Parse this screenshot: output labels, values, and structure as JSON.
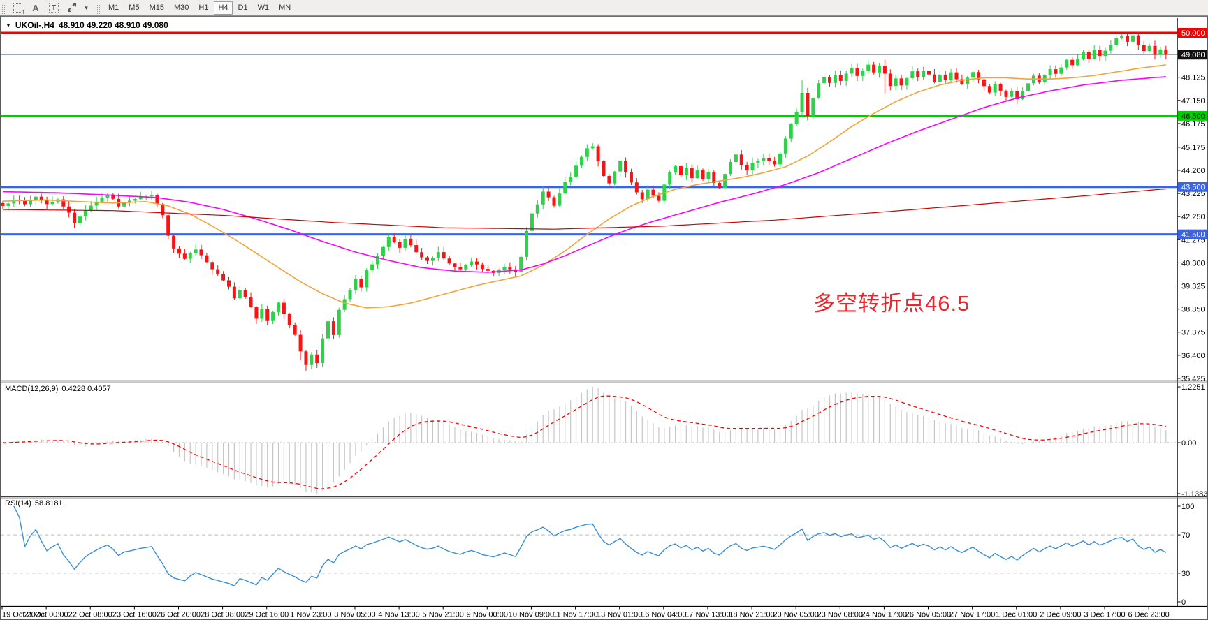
{
  "toolbar": {
    "icons": [
      {
        "name": "dashed-frame-icon",
        "glyph": "f"
      },
      {
        "name": "letter-a-icon",
        "glyph": "A"
      },
      {
        "name": "text-tool-icon",
        "glyph": "T"
      },
      {
        "name": "diagonal-arrows-icon",
        "glyph": ""
      },
      {
        "name": "dropdown-caret-icon",
        "glyph": "▾"
      }
    ],
    "timeframes": [
      "M1",
      "M5",
      "M15",
      "M30",
      "H1",
      "H4",
      "D1",
      "W1",
      "MN"
    ],
    "active_timeframe": "H4"
  },
  "header": {
    "collapse_icon": "▼",
    "symbol": "UKOil-,H4",
    "quotes": "48.910 49.220 48.910 49.080"
  },
  "annotation": {
    "text": "多空转折点46.5",
    "color": "#e8262d"
  },
  "colors": {
    "bull": "#2ed149",
    "bear": "#f81414",
    "level_red": "#f40000",
    "level_green": "#00cd00",
    "level_blue": "#3b63e6",
    "current_price_line": "#7b8a99",
    "ma_fast": "#f0a43c",
    "ma_mid": "#ff00ff",
    "ma_slow": "#d40000",
    "macd_histogram": "#c6c6c6",
    "macd_signal": "#ff0000",
    "rsi_line": "#3a8fd3",
    "axis_text": "#000000",
    "panel_border": "#4a4a4a",
    "dashed_level": "#bdbdbd"
  },
  "price_axis": {
    "tick_labels": [
      "48.125",
      "47.150",
      "46.175",
      "45.175",
      "44.200",
      "43.225",
      "42.250",
      "41.275",
      "40.300",
      "39.325",
      "38.350",
      "37.375",
      "36.400",
      "35.425"
    ],
    "tick_values": [
      48.125,
      47.15,
      46.175,
      45.175,
      44.2,
      43.225,
      42.25,
      41.275,
      40.3,
      39.325,
      38.35,
      37.375,
      36.4,
      35.425
    ],
    "badges": [
      {
        "label": "50.000",
        "price": 50.0,
        "bg": "#f40000",
        "fg": "#ffffff"
      },
      {
        "label": "49.080",
        "price": 49.08,
        "bg": "#101010",
        "fg": "#ffffff"
      },
      {
        "label": "46.500",
        "price": 46.5,
        "bg": "#00cd00",
        "fg": "#000000"
      },
      {
        "label": "43.500",
        "price": 43.5,
        "bg": "#3b63e6",
        "fg": "#ffffff"
      },
      {
        "label": "41.500",
        "price": 41.5,
        "bg": "#3b63e6",
        "fg": "#ffffff"
      }
    ]
  },
  "levels": [
    {
      "name": "resistance-50.000",
      "price": 50.0,
      "color_key": "level_red",
      "width": 3
    },
    {
      "name": "pivot-46.500",
      "price": 46.5,
      "color_key": "level_green",
      "width": 3
    },
    {
      "name": "support-43.500",
      "price": 43.5,
      "color_key": "level_blue",
      "width": 3
    },
    {
      "name": "support-41.500",
      "price": 41.5,
      "color_key": "level_blue",
      "width": 3
    },
    {
      "name": "current-price-49.080",
      "price": 49.08,
      "color_key": "current_price_line",
      "width": 1
    }
  ],
  "time_axis": {
    "labels": [
      "19 Oct 2020",
      "21 Oct 00:00",
      "22 Oct 08:00",
      "23 Oct 16:00",
      "26 Oct 20:00",
      "28 Oct 08:00",
      "29 Oct 16:00",
      "1 Nov 23:00",
      "3 Nov 05:00",
      "4 Nov 13:00",
      "5 Nov 21:00",
      "9 Nov 00:00",
      "10 Nov 09:00",
      "11 Nov 17:00",
      "13 Nov 01:00",
      "16 Nov 04:00",
      "17 Nov 13:00",
      "18 Nov 21:00",
      "20 Nov 05:00",
      "23 Nov 08:00",
      "24 Nov 17:00",
      "26 Nov 05:00",
      "27 Nov 17:00",
      "1 Dec 01:00",
      "2 Dec 09:00",
      "3 Dec 17:00",
      "6 Dec 23:00"
    ]
  },
  "chart_data": {
    "type": "candlestick",
    "symbol": "UKOil",
    "timeframe": "H4",
    "bars": 212,
    "seed": 7,
    "current_bar": {
      "open": 48.91,
      "high": 49.22,
      "low": 48.91,
      "close": 49.08
    },
    "price_range_shown": [
      35.425,
      50.3
    ],
    "close_waypoints": [
      [
        0,
        42.7
      ],
      [
        2,
        43.0
      ],
      [
        4,
        42.75
      ],
      [
        6,
        43.1
      ],
      [
        8,
        42.8
      ],
      [
        10,
        42.95
      ],
      [
        12,
        42.45
      ],
      [
        13,
        41.95
      ],
      [
        15,
        42.55
      ],
      [
        17,
        42.9
      ],
      [
        19,
        43.2
      ],
      [
        21,
        42.7
      ],
      [
        23,
        42.95
      ],
      [
        25,
        43.1
      ],
      [
        27,
        43.15
      ],
      [
        28,
        42.75
      ],
      [
        29,
        42.35
      ],
      [
        30,
        41.4
      ],
      [
        31,
        40.9
      ],
      [
        33,
        40.45
      ],
      [
        35,
        40.85
      ],
      [
        37,
        40.3
      ],
      [
        39,
        39.85
      ],
      [
        41,
        39.3
      ],
      [
        42,
        38.85
      ],
      [
        43,
        39.2
      ],
      [
        45,
        38.45
      ],
      [
        46,
        37.95
      ],
      [
        47,
        38.35
      ],
      [
        48,
        37.8
      ],
      [
        50,
        38.6
      ],
      [
        51,
        38.15
      ],
      [
        52,
        37.7
      ],
      [
        53,
        37.3
      ],
      [
        54,
        36.6
      ],
      [
        55,
        35.95
      ],
      [
        56,
        36.45
      ],
      [
        57,
        36.1
      ],
      [
        58,
        37.1
      ],
      [
        59,
        37.85
      ],
      [
        60,
        37.3
      ],
      [
        61,
        38.3
      ],
      [
        63,
        39.15
      ],
      [
        64,
        39.6
      ],
      [
        65,
        39.25
      ],
      [
        66,
        39.95
      ],
      [
        68,
        40.6
      ],
      [
        69,
        40.95
      ],
      [
        70,
        41.35
      ],
      [
        72,
        40.9
      ],
      [
        73,
        41.3
      ],
      [
        75,
        40.7
      ],
      [
        77,
        40.35
      ],
      [
        79,
        40.75
      ],
      [
        81,
        40.25
      ],
      [
        83,
        40.0
      ],
      [
        85,
        40.35
      ],
      [
        87,
        40.05
      ],
      [
        89,
        39.85
      ],
      [
        91,
        40.15
      ],
      [
        93,
        39.95
      ],
      [
        94,
        40.6
      ],
      [
        95,
        41.6
      ],
      [
        96,
        42.35
      ],
      [
        97,
        42.75
      ],
      [
        98,
        43.35
      ],
      [
        99,
        43.05
      ],
      [
        100,
        42.7
      ],
      [
        101,
        43.2
      ],
      [
        102,
        43.65
      ],
      [
        103,
        43.95
      ],
      [
        104,
        44.35
      ],
      [
        105,
        44.75
      ],
      [
        106,
        45.1
      ],
      [
        107,
        45.2
      ],
      [
        108,
        44.55
      ],
      [
        109,
        44.0
      ],
      [
        110,
        43.6
      ],
      [
        111,
        44.15
      ],
      [
        112,
        44.6
      ],
      [
        113,
        44.15
      ],
      [
        114,
        43.7
      ],
      [
        115,
        43.3
      ],
      [
        116,
        42.95
      ],
      [
        117,
        43.35
      ],
      [
        118,
        43.1
      ],
      [
        119,
        42.9
      ],
      [
        120,
        43.55
      ],
      [
        121,
        44.1
      ],
      [
        122,
        44.35
      ],
      [
        123,
        43.95
      ],
      [
        124,
        44.3
      ],
      [
        125,
        43.9
      ],
      [
        126,
        44.2
      ],
      [
        127,
        43.8
      ],
      [
        128,
        44.1
      ],
      [
        129,
        43.7
      ],
      [
        130,
        43.45
      ],
      [
        131,
        44.05
      ],
      [
        132,
        44.55
      ],
      [
        133,
        44.9
      ],
      [
        134,
        44.45
      ],
      [
        135,
        44.2
      ],
      [
        136,
        44.5
      ],
      [
        138,
        44.75
      ],
      [
        140,
        44.5
      ],
      [
        141,
        44.95
      ],
      [
        142,
        45.5
      ],
      [
        143,
        46.1
      ],
      [
        144,
        46.7
      ],
      [
        145,
        47.5
      ],
      [
        146,
        46.5
      ],
      [
        147,
        47.25
      ],
      [
        148,
        47.85
      ],
      [
        149,
        48.15
      ],
      [
        150,
        47.9
      ],
      [
        151,
        48.2
      ],
      [
        152,
        47.95
      ],
      [
        153,
        48.25
      ],
      [
        154,
        48.5
      ],
      [
        155,
        48.15
      ],
      [
        156,
        48.4
      ],
      [
        157,
        48.65
      ],
      [
        158,
        48.35
      ],
      [
        159,
        48.6
      ],
      [
        160,
        48.25
      ],
      [
        161,
        47.8
      ],
      [
        162,
        48.1
      ],
      [
        163,
        47.75
      ],
      [
        164,
        48.05
      ],
      [
        165,
        48.35
      ],
      [
        166,
        48.15
      ],
      [
        167,
        48.4
      ],
      [
        168,
        48.2
      ],
      [
        169,
        47.95
      ],
      [
        170,
        48.25
      ],
      [
        171,
        48.0
      ],
      [
        172,
        48.3
      ],
      [
        173,
        48.05
      ],
      [
        174,
        47.8
      ],
      [
        175,
        48.1
      ],
      [
        176,
        48.35
      ],
      [
        177,
        48.05
      ],
      [
        178,
        47.75
      ],
      [
        179,
        47.5
      ],
      [
        180,
        47.8
      ],
      [
        181,
        47.55
      ],
      [
        182,
        47.25
      ],
      [
        183,
        47.5
      ],
      [
        184,
        47.2
      ],
      [
        185,
        47.55
      ],
      [
        186,
        47.85
      ],
      [
        187,
        48.15
      ],
      [
        188,
        47.9
      ],
      [
        189,
        48.2
      ],
      [
        190,
        48.5
      ],
      [
        191,
        48.25
      ],
      [
        192,
        48.55
      ],
      [
        193,
        48.85
      ],
      [
        194,
        48.6
      ],
      [
        195,
        48.9
      ],
      [
        196,
        49.2
      ],
      [
        197,
        48.95
      ],
      [
        198,
        49.25
      ],
      [
        199,
        49.0
      ],
      [
        200,
        49.2
      ],
      [
        201,
        49.5
      ],
      [
        202,
        49.8
      ],
      [
        203,
        49.9
      ],
      [
        204,
        49.6
      ],
      [
        205,
        49.85
      ],
      [
        206,
        49.45
      ],
      [
        207,
        49.2
      ],
      [
        208,
        49.4
      ],
      [
        209,
        49.1
      ],
      [
        210,
        49.25
      ],
      [
        211,
        49.08
      ]
    ],
    "wick_extremes": [
      [
        54,
        null,
        36.2
      ],
      [
        55,
        null,
        35.75
      ],
      [
        107,
        45.35,
        null
      ],
      [
        145,
        48.0,
        null
      ],
      [
        146,
        null,
        46.3
      ],
      [
        160,
        48.9,
        47.45
      ],
      [
        202,
        49.9,
        null
      ],
      [
        203,
        49.97,
        null
      ],
      [
        205,
        49.95,
        null
      ]
    ],
    "moving_averages": [
      {
        "name": "ma-fast-orange",
        "color_key": "ma_fast",
        "points": [
          [
            0,
            42.9
          ],
          [
            8,
            42.95
          ],
          [
            14,
            42.88
          ],
          [
            20,
            42.82
          ],
          [
            26,
            42.88
          ],
          [
            30,
            42.7
          ],
          [
            34,
            42.35
          ],
          [
            38,
            41.85
          ],
          [
            42,
            41.3
          ],
          [
            46,
            40.7
          ],
          [
            50,
            40.1
          ],
          [
            54,
            39.5
          ],
          [
            58,
            39.0
          ],
          [
            62,
            38.6
          ],
          [
            66,
            38.4
          ],
          [
            70,
            38.45
          ],
          [
            74,
            38.6
          ],
          [
            78,
            38.85
          ],
          [
            82,
            39.1
          ],
          [
            86,
            39.35
          ],
          [
            90,
            39.55
          ],
          [
            94,
            39.75
          ],
          [
            98,
            40.2
          ],
          [
            102,
            40.8
          ],
          [
            106,
            41.5
          ],
          [
            110,
            42.15
          ],
          [
            114,
            42.7
          ],
          [
            118,
            43.1
          ],
          [
            122,
            43.4
          ],
          [
            126,
            43.6
          ],
          [
            130,
            43.75
          ],
          [
            134,
            43.9
          ],
          [
            138,
            44.1
          ],
          [
            142,
            44.35
          ],
          [
            146,
            44.8
          ],
          [
            150,
            45.4
          ],
          [
            154,
            46.05
          ],
          [
            158,
            46.6
          ],
          [
            162,
            47.1
          ],
          [
            166,
            47.5
          ],
          [
            170,
            47.8
          ],
          [
            174,
            48.0
          ],
          [
            178,
            48.1
          ],
          [
            182,
            48.1
          ],
          [
            186,
            48.05
          ],
          [
            190,
            48.05
          ],
          [
            194,
            48.1
          ],
          [
            198,
            48.2
          ],
          [
            202,
            48.35
          ],
          [
            206,
            48.5
          ],
          [
            211,
            48.65
          ]
        ]
      },
      {
        "name": "ma-mid-magenta",
        "color_key": "ma_mid",
        "points": [
          [
            0,
            43.3
          ],
          [
            10,
            43.25
          ],
          [
            20,
            43.15
          ],
          [
            28,
            43.05
          ],
          [
            34,
            42.85
          ],
          [
            40,
            42.55
          ],
          [
            46,
            42.15
          ],
          [
            52,
            41.7
          ],
          [
            58,
            41.2
          ],
          [
            64,
            40.75
          ],
          [
            70,
            40.4
          ],
          [
            76,
            40.1
          ],
          [
            82,
            39.95
          ],
          [
            88,
            39.9
          ],
          [
            94,
            40.0
          ],
          [
            98,
            40.25
          ],
          [
            102,
            40.6
          ],
          [
            106,
            41.0
          ],
          [
            110,
            41.4
          ],
          [
            114,
            41.75
          ],
          [
            118,
            42.05
          ],
          [
            124,
            42.45
          ],
          [
            130,
            42.85
          ],
          [
            136,
            43.2
          ],
          [
            142,
            43.6
          ],
          [
            148,
            44.1
          ],
          [
            154,
            44.7
          ],
          [
            160,
            45.3
          ],
          [
            166,
            45.85
          ],
          [
            172,
            46.35
          ],
          [
            178,
            46.85
          ],
          [
            184,
            47.25
          ],
          [
            190,
            47.55
          ],
          [
            196,
            47.8
          ],
          [
            203,
            48.0
          ],
          [
            211,
            48.15
          ]
        ]
      },
      {
        "name": "ma-slow-red",
        "color_key": "ma_slow",
        "points": [
          [
            0,
            42.55
          ],
          [
            20,
            42.5
          ],
          [
            40,
            42.3
          ],
          [
            60,
            42.0
          ],
          [
            80,
            41.78
          ],
          [
            100,
            41.72
          ],
          [
            120,
            41.85
          ],
          [
            140,
            42.1
          ],
          [
            160,
            42.45
          ],
          [
            180,
            42.82
          ],
          [
            196,
            43.12
          ],
          [
            211,
            43.42
          ]
        ]
      }
    ],
    "indicators": {
      "macd": {
        "label": "MACD(12,26,9)",
        "values_label": "0.4228 0.4057",
        "fast": 12,
        "slow": 26,
        "signal": 9,
        "axis_labels": [
          "1.2251",
          "0.00",
          "-1.1383"
        ],
        "axis_values": [
          1.2251,
          0.0,
          -1.1383
        ]
      },
      "rsi": {
        "label": "RSI(14)",
        "value_label": "58.8181",
        "period": 14,
        "axis_labels": [
          "100",
          "70",
          "30",
          "0"
        ],
        "axis_values": [
          100,
          70,
          30,
          0
        ],
        "overbought": 70,
        "oversold": 30
      }
    }
  }
}
